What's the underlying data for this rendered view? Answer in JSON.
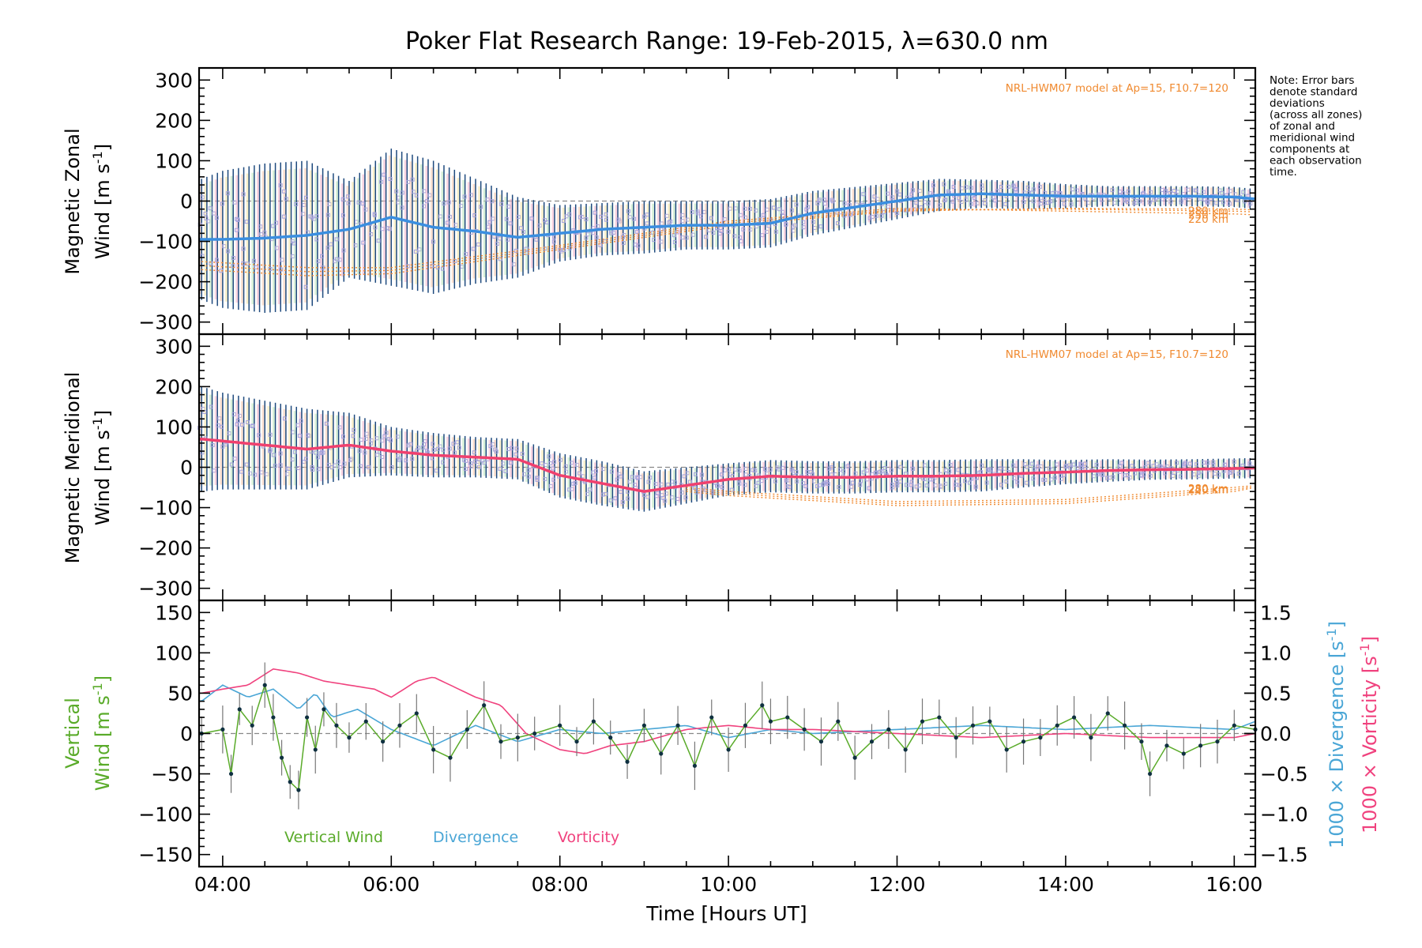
{
  "title": "Poker Flat Research Range: 19-Feb-2015, λ=630.0 nm",
  "note_lines": [
    "Note: Error bars",
    "denote standard",
    "deviations",
    "(across all zones)",
    "of zonal and",
    "meridional wind",
    "components at",
    "each observation",
    "time."
  ],
  "colors": {
    "zonal": "#3a8ee0",
    "meridional": "#f0406e",
    "vertical": "#5aab2a",
    "divergence": "#4aa6d6",
    "vorticity": "#f0427e",
    "model": "#f08a30",
    "errorbar": "#1e4a7e",
    "scatter": "#a6a3dc"
  },
  "x_axis": {
    "label": "Time [Hours UT]",
    "range": [
      3.72,
      16.25
    ],
    "tick_values": [
      4,
      6,
      8,
      10,
      12,
      14,
      16
    ],
    "tick_labels": [
      "04:00",
      "06:00",
      "08:00",
      "10:00",
      "12:00",
      "14:00",
      "16:00"
    ]
  },
  "panels": {
    "zonal": {
      "ylabel_line1": "Magnetic Zonal",
      "ylabel_line2": "Wind [m s",
      "ylabel_sup": "-1",
      "ylabel_close": "]",
      "model_label": "NRL-HWM07 model at Ap=15, F10.7=120",
      "model_heights": [
        "280 km",
        "250 km",
        "220 km"
      ],
      "ylim": [
        -330,
        330
      ],
      "yticks": [
        -300,
        -200,
        -100,
        0,
        100,
        200,
        300
      ],
      "ytick_labels": [
        "−300",
        "−200",
        "−100",
        "0",
        "100",
        "200",
        "300"
      ]
    },
    "meridional": {
      "ylabel_line1": "Magnetic Meridional",
      "ylabel_line2": "Wind [m s",
      "ylabel_sup": "-1",
      "ylabel_close": "]",
      "model_label": "NRL-HWM07 model at Ap=15, F10.7=120",
      "model_heights": [
        "280 km",
        "250 km",
        "220 km"
      ],
      "ylim": [
        -330,
        330
      ],
      "yticks": [
        -300,
        -200,
        -100,
        0,
        100,
        200,
        300
      ],
      "ytick_labels": [
        "−300",
        "−200",
        "−100",
        "0",
        "100",
        "200",
        "300"
      ]
    },
    "vertical": {
      "ylabel_line1": "Vertical",
      "ylabel_line2": "Wind [m s",
      "ylabel_sup": "-1",
      "ylabel_close": "]",
      "ylim": [
        -165,
        165
      ],
      "yticks": [
        -150,
        -100,
        -50,
        0,
        50,
        100,
        150
      ],
      "ytick_labels": [
        "−150",
        "−100",
        "−50",
        "0",
        "50",
        "100",
        "150"
      ],
      "right_ylim": [
        -1.65,
        1.65
      ],
      "right_yticks": [
        -1.5,
        -1.0,
        -0.5,
        0.0,
        0.5,
        1.0,
        1.5
      ],
      "right_ytick_labels": [
        "−1.5",
        "−1.0",
        "−0.5",
        "0.0",
        "0.5",
        "1.0",
        "1.5"
      ],
      "right_label_div": "1000 × Divergence [s",
      "right_label_vor": "1000 × Vorticity [s",
      "right_label_sup": "-1",
      "right_label_close": "]",
      "legend": [
        "Vertical Wind",
        "Divergence",
        "Vorticity"
      ]
    }
  },
  "chart_data": [
    {
      "type": "line",
      "title": "Poker Flat Research Range: 19-Feb-2015, λ=630.0 nm",
      "ylabel": "Magnetic Zonal Wind [m s-1]",
      "xlabel": "",
      "ylim": [
        -330,
        330
      ],
      "series": [
        {
          "name": "Magnetic Zonal Wind",
          "x": [
            3.75,
            4.0,
            4.5,
            5.0,
            5.5,
            6.0,
            6.5,
            7.0,
            7.5,
            8.0,
            8.5,
            9.0,
            9.5,
            10.0,
            10.5,
            11.0,
            11.5,
            12.0,
            12.5,
            13.0,
            13.5,
            14.0,
            14.5,
            15.0,
            15.5,
            16.0,
            16.25
          ],
          "y": [
            -95,
            -95,
            -92,
            -85,
            -70,
            -40,
            -65,
            -75,
            -90,
            -80,
            -70,
            -65,
            -60,
            -60,
            -55,
            -30,
            -15,
            0,
            15,
            18,
            15,
            12,
            12,
            12,
            12,
            10,
            5
          ],
          "error": [
            150,
            170,
            185,
            185,
            120,
            170,
            165,
            130,
            100,
            70,
            65,
            65,
            60,
            60,
            60,
            55,
            50,
            45,
            40,
            35,
            35,
            30,
            25,
            25,
            25,
            25,
            25
          ]
        }
      ],
      "model_series": [
        {
          "name": "280 km",
          "x": [
            3.75,
            5,
            6,
            8,
            10,
            12,
            14,
            16,
            16.25
          ],
          "y": [
            -170,
            -185,
            -180,
            -120,
            -60,
            -25,
            -18,
            -20,
            -22
          ]
        },
        {
          "name": "250 km",
          "x": [
            3.75,
            5,
            6,
            8,
            10,
            12,
            14,
            16,
            16.25
          ],
          "y": [
            -160,
            -175,
            -172,
            -115,
            -55,
            -22,
            -20,
            -25,
            -27
          ]
        },
        {
          "name": "220 km",
          "x": [
            3.75,
            5,
            6,
            8,
            10,
            12,
            14,
            16,
            16.25
          ],
          "y": [
            -150,
            -165,
            -165,
            -110,
            -50,
            -18,
            -25,
            -32,
            -34
          ]
        }
      ]
    },
    {
      "type": "line",
      "ylabel": "Magnetic Meridional Wind [m s-1]",
      "xlabel": "",
      "ylim": [
        -330,
        330
      ],
      "series": [
        {
          "name": "Magnetic Meridional Wind",
          "x": [
            3.75,
            4.0,
            4.5,
            5.0,
            5.5,
            6.0,
            6.5,
            7.0,
            7.5,
            8.0,
            8.5,
            9.0,
            9.5,
            10.0,
            10.5,
            11.0,
            11.5,
            12.0,
            12.5,
            13.0,
            13.5,
            14.0,
            14.5,
            15.0,
            15.5,
            16.0,
            16.25
          ],
          "y": [
            70,
            65,
            55,
            45,
            55,
            40,
            30,
            25,
            20,
            -20,
            -40,
            -60,
            -45,
            -30,
            -22,
            -25,
            -25,
            -22,
            -22,
            -20,
            -15,
            -12,
            -8,
            -6,
            -5,
            -3,
            -2
          ],
          "error": [
            130,
            120,
            110,
            100,
            80,
            60,
            55,
            50,
            50,
            55,
            55,
            50,
            45,
            40,
            40,
            40,
            40,
            40,
            40,
            40,
            35,
            30,
            28,
            25,
            25,
            25,
            25
          ]
        }
      ],
      "model_series": [
        {
          "name": "280 km",
          "x": [
            9.5,
            10,
            12,
            14,
            16,
            16.25
          ],
          "y": [
            -60,
            -70,
            -95,
            -90,
            -60,
            -50
          ]
        },
        {
          "name": "250 km",
          "x": [
            9.5,
            10,
            12,
            14,
            16,
            16.25
          ],
          "y": [
            -55,
            -65,
            -90,
            -85,
            -55,
            -48
          ]
        },
        {
          "name": "220 km",
          "x": [
            9.5,
            10,
            12,
            14,
            16,
            16.25
          ],
          "y": [
            -50,
            -60,
            -85,
            -80,
            -50,
            -45
          ]
        }
      ]
    },
    {
      "type": "line",
      "xlabel": "Time [Hours UT]",
      "ylabel": "Vertical Wind [m s-1]",
      "ylim": [
        -165,
        165
      ],
      "y2lim": [
        -1.65,
        1.65
      ],
      "series": [
        {
          "name": "Vertical Wind",
          "x": [
            3.75,
            4.0,
            4.1,
            4.2,
            4.35,
            4.5,
            4.6,
            4.7,
            4.8,
            4.9,
            5.0,
            5.1,
            5.2,
            5.35,
            5.5,
            5.7,
            5.9,
            6.1,
            6.3,
            6.5,
            6.7,
            6.9,
            7.1,
            7.3,
            7.5,
            7.7,
            8.0,
            8.2,
            8.4,
            8.6,
            8.8,
            9.0,
            9.2,
            9.4,
            9.6,
            9.8,
            10.0,
            10.2,
            10.4,
            10.5,
            10.7,
            10.9,
            11.1,
            11.3,
            11.5,
            11.7,
            11.9,
            12.1,
            12.3,
            12.5,
            12.7,
            12.9,
            13.1,
            13.3,
            13.5,
            13.7,
            13.9,
            14.1,
            14.3,
            14.5,
            14.7,
            14.9,
            15.0,
            15.2,
            15.4,
            15.6,
            15.8,
            16.0,
            16.25
          ],
          "y": [
            0,
            5,
            -50,
            30,
            10,
            60,
            20,
            -30,
            -60,
            -70,
            20,
            -20,
            30,
            10,
            -5,
            15,
            -10,
            10,
            25,
            -20,
            -30,
            5,
            35,
            -10,
            -5,
            0,
            10,
            -10,
            15,
            -5,
            -35,
            10,
            -25,
            10,
            -40,
            20,
            -20,
            10,
            35,
            15,
            20,
            5,
            -10,
            15,
            -30,
            -10,
            5,
            -20,
            15,
            20,
            -5,
            10,
            15,
            -20,
            -10,
            -5,
            10,
            20,
            -5,
            25,
            10,
            -10,
            -50,
            -15,
            -25,
            -15,
            -10,
            10,
            5
          ]
        },
        {
          "name": "Divergence",
          "x": [
            3.75,
            4.0,
            4.3,
            4.6,
            4.9,
            5.1,
            5.3,
            5.6,
            6.0,
            6.5,
            7.0,
            7.5,
            8.0,
            8.5,
            9.0,
            9.5,
            10.0,
            10.5,
            11.0,
            12.0,
            13.0,
            14.0,
            15.0,
            16.0,
            16.25
          ],
          "y": [
            0.4,
            0.6,
            0.45,
            0.55,
            0.3,
            0.5,
            0.2,
            0.3,
            0.05,
            -0.15,
            0.1,
            -0.1,
            0.05,
            0.0,
            0.05,
            0.1,
            -0.05,
            0.05,
            0.0,
            0.05,
            0.1,
            0.05,
            0.1,
            0.05,
            0.15
          ]
        },
        {
          "name": "Vorticity",
          "x": [
            3.75,
            4.0,
            4.3,
            4.6,
            4.9,
            5.2,
            5.5,
            5.8,
            6.0,
            6.3,
            6.5,
            6.8,
            7.0,
            7.3,
            7.6,
            8.0,
            8.3,
            8.6,
            9.0,
            9.5,
            10.0,
            10.5,
            11.0,
            12.0,
            13.0,
            14.0,
            15.0,
            16.0,
            16.25
          ],
          "y": [
            0.5,
            0.55,
            0.6,
            0.8,
            0.75,
            0.65,
            0.6,
            0.55,
            0.45,
            0.65,
            0.7,
            0.55,
            0.45,
            0.35,
            0.0,
            -0.2,
            -0.25,
            -0.15,
            -0.1,
            0.05,
            0.1,
            0.05,
            0.05,
            0.0,
            -0.05,
            0.0,
            -0.05,
            -0.05,
            0.0
          ]
        }
      ]
    }
  ]
}
